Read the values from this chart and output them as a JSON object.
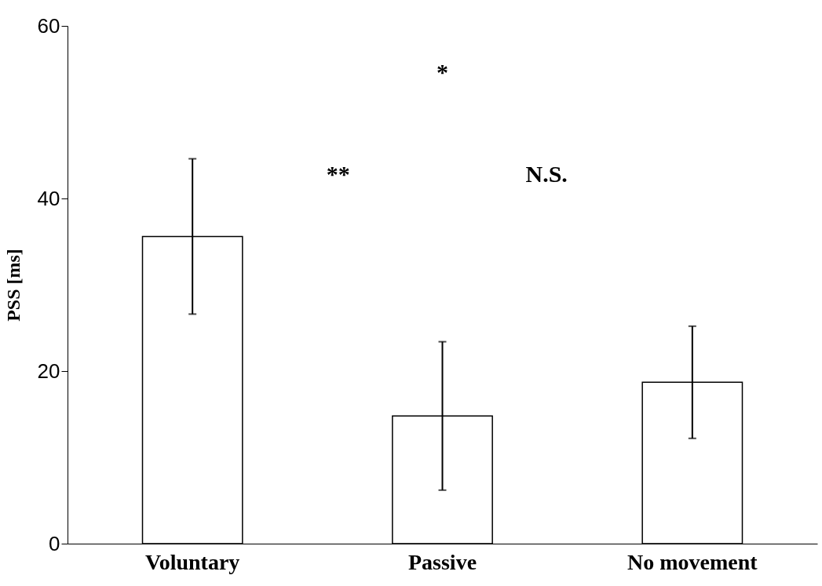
{
  "chart_data": {
    "type": "bar",
    "ylabel": "PSS [ms]",
    "categories": [
      "Voluntary",
      "Passive",
      "No movement"
    ],
    "values": [
      35.6,
      14.8,
      18.7
    ],
    "errors": [
      9,
      8.6,
      6.5
    ],
    "color": "#ffffff",
    "ylim": [
      0,
      60
    ],
    "yticks": [
      0,
      20,
      40,
      60
    ],
    "grid": false,
    "annotations": [
      "*",
      "**",
      "N.S."
    ]
  }
}
